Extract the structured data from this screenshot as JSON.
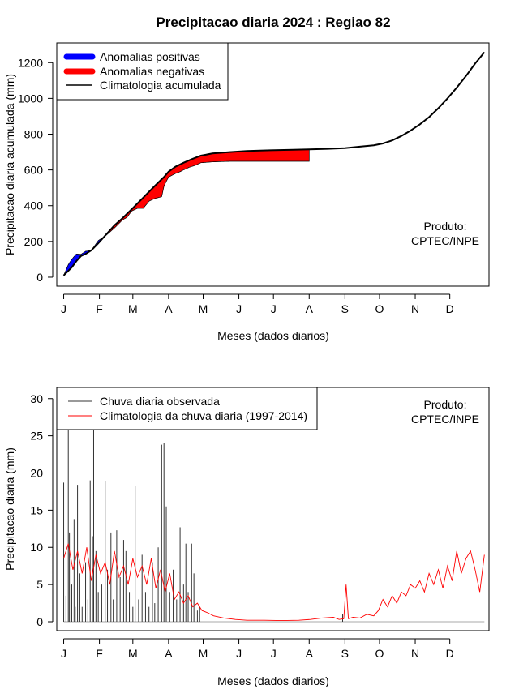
{
  "title": "Precipitacao diaria 2024 : Regiao 82",
  "colors": {
    "positive": "#0000ff",
    "negative": "#ff0000",
    "clim": "#000000",
    "obs": "#333333",
    "clim_daily": "#ff0000"
  },
  "product_note": {
    "line1": "Produto:",
    "line2": "CPTEC/INPE"
  },
  "chart_data": [
    {
      "type": "area",
      "name": "cumulative",
      "xlabel": "Meses (dados diarios)",
      "ylabel": "Precipitacao diaria acumulada (mm)",
      "xlim": [
        -5,
        370
      ],
      "ylim": [
        -50,
        1310
      ],
      "yticks": [
        0,
        200,
        400,
        600,
        800,
        1000,
        1200
      ],
      "month_ticks": [
        {
          "day": 1,
          "label": "J"
        },
        {
          "day": 32,
          "label": "F"
        },
        {
          "day": 61,
          "label": "M"
        },
        {
          "day": 92,
          "label": "A"
        },
        {
          "day": 122,
          "label": "M"
        },
        {
          "day": 153,
          "label": "J"
        },
        {
          "day": 183,
          "label": "J"
        },
        {
          "day": 214,
          "label": "A"
        },
        {
          "day": 245,
          "label": "S"
        },
        {
          "day": 275,
          "label": "O"
        },
        {
          "day": 306,
          "label": "N"
        },
        {
          "day": 336,
          "label": "D"
        }
      ],
      "legend": [
        {
          "label": "Anomalias positivas",
          "kind": "band",
          "color": "#0000ff"
        },
        {
          "label": "Anomalias negativas",
          "kind": "band",
          "color": "#ff0000"
        },
        {
          "label": "Climatologia acumulada",
          "kind": "line",
          "color": "#000000"
        }
      ],
      "climatology": {
        "x": [
          1,
          8,
          12,
          16,
          20,
          25,
          31,
          38,
          45,
          52,
          60,
          70,
          80,
          88,
          92,
          98,
          105,
          112,
          120,
          130,
          145,
          160,
          180,
          200,
          214,
          230,
          245,
          258,
          270,
          278,
          286,
          294,
          302,
          310,
          318,
          326,
          334,
          342,
          350,
          358,
          366
        ],
        "y": [
          10,
          55,
          90,
          118,
          130,
          150,
          190,
          240,
          290,
          330,
          380,
          445,
          510,
          560,
          590,
          618,
          640,
          660,
          680,
          692,
          700,
          706,
          710,
          713,
          715,
          718,
          722,
          730,
          738,
          748,
          765,
          790,
          820,
          855,
          895,
          945,
          1000,
          1060,
          1125,
          1195,
          1258
        ]
      },
      "observed": {
        "x": [
          1,
          5,
          8,
          12,
          16,
          20,
          25,
          31,
          38,
          45,
          52,
          56,
          60,
          65,
          70,
          75,
          80,
          83,
          86,
          88,
          92,
          98,
          102,
          105,
          110,
          115,
          120,
          130,
          145,
          160,
          180,
          200,
          214
        ],
        "y": [
          10,
          70,
          100,
          130,
          128,
          145,
          150,
          205,
          235,
          275,
          320,
          335,
          370,
          385,
          385,
          425,
          440,
          445,
          450,
          510,
          560,
          580,
          590,
          600,
          615,
          625,
          640,
          645,
          648,
          648,
          648,
          648,
          648
        ]
      }
    },
    {
      "type": "line",
      "name": "daily",
      "xlabel": "Meses (dados diarios)",
      "ylabel": "Precipitacao diaria (mm)",
      "xlim": [
        -5,
        370
      ],
      "ylim": [
        -1.2,
        31.5
      ],
      "yticks": [
        0,
        5,
        10,
        15,
        20,
        25,
        30
      ],
      "legend": [
        {
          "label": "Chuva diaria observada",
          "kind": "line",
          "color": "#333333"
        },
        {
          "label": "Climatologia da chuva diaria (1997-2014)",
          "kind": "line",
          "color": "#ff0000"
        }
      ],
      "observed_daily": [
        {
          "day": 1,
          "value": 18.7
        },
        {
          "day": 3,
          "value": 3.5
        },
        {
          "day": 5,
          "value": 26.8
        },
        {
          "day": 6,
          "value": 12.0
        },
        {
          "day": 8,
          "value": 5.0
        },
        {
          "day": 10,
          "value": 13.8
        },
        {
          "day": 11,
          "value": 2.0
        },
        {
          "day": 13,
          "value": 18.4
        },
        {
          "day": 15,
          "value": 6.5
        },
        {
          "day": 17,
          "value": 2.0
        },
        {
          "day": 20,
          "value": 8.0
        },
        {
          "day": 22,
          "value": 3.0
        },
        {
          "day": 24,
          "value": 19.0
        },
        {
          "day": 26,
          "value": 11.5
        },
        {
          "day": 27,
          "value": 26.0
        },
        {
          "day": 29,
          "value": 9.5
        },
        {
          "day": 31,
          "value": 4.0
        },
        {
          "day": 34,
          "value": 5.0
        },
        {
          "day": 37,
          "value": 18.9
        },
        {
          "day": 39,
          "value": 7.0
        },
        {
          "day": 42,
          "value": 12.0
        },
        {
          "day": 44,
          "value": 3.0
        },
        {
          "day": 47,
          "value": 12.3
        },
        {
          "day": 50,
          "value": 6.0
        },
        {
          "day": 53,
          "value": 11.0
        },
        {
          "day": 55,
          "value": 9.5
        },
        {
          "day": 58,
          "value": 4.0
        },
        {
          "day": 61,
          "value": 2.0
        },
        {
          "day": 63,
          "value": 18.2
        },
        {
          "day": 66,
          "value": 3.0
        },
        {
          "day": 69,
          "value": 9.0
        },
        {
          "day": 72,
          "value": 4.0
        },
        {
          "day": 75,
          "value": 2.0
        },
        {
          "day": 78,
          "value": 8.0
        },
        {
          "day": 80,
          "value": 2.5
        },
        {
          "day": 83,
          "value": 10.0
        },
        {
          "day": 86,
          "value": 23.8
        },
        {
          "day": 88,
          "value": 24.0
        },
        {
          "day": 90,
          "value": 15.5
        },
        {
          "day": 93,
          "value": 4.0
        },
        {
          "day": 96,
          "value": 7.0
        },
        {
          "day": 99,
          "value": 3.0
        },
        {
          "day": 102,
          "value": 12.7
        },
        {
          "day": 105,
          "value": 5.0
        },
        {
          "day": 107,
          "value": 10.5
        },
        {
          "day": 109,
          "value": 4.0
        },
        {
          "day": 112,
          "value": 10.5
        },
        {
          "day": 114,
          "value": 6.5
        },
        {
          "day": 117,
          "value": 1.5
        },
        {
          "day": 119,
          "value": 2.0
        },
        {
          "day": 243,
          "value": 1.0
        }
      ],
      "climatology_daily": {
        "x": [
          1,
          5,
          9,
          13,
          17,
          21,
          25,
          29,
          33,
          37,
          41,
          45,
          49,
          53,
          57,
          61,
          65,
          69,
          73,
          77,
          81,
          85,
          89,
          93,
          97,
          101,
          105,
          109,
          113,
          117,
          121,
          126,
          131,
          140,
          150,
          160,
          175,
          190,
          205,
          215,
          225,
          235,
          240,
          244,
          246,
          248,
          252,
          258,
          264,
          270,
          274,
          278,
          282,
          286,
          290,
          294,
          298,
          302,
          306,
          310,
          314,
          318,
          322,
          326,
          330,
          334,
          338,
          342,
          346,
          350,
          354,
          358,
          362,
          366
        ],
        "y": [
          8.5,
          10.5,
          7.0,
          9.5,
          6.5,
          10.0,
          5.5,
          9.0,
          6.5,
          8.0,
          5.0,
          9.5,
          6.0,
          7.5,
          5.0,
          8.5,
          6.0,
          7.5,
          5.0,
          8.5,
          4.5,
          7.0,
          4.0,
          6.5,
          3.0,
          4.0,
          2.5,
          3.5,
          2.0,
          2.5,
          1.5,
          1.2,
          0.8,
          0.5,
          0.3,
          0.2,
          0.2,
          0.15,
          0.2,
          0.3,
          0.5,
          0.6,
          0.3,
          0.4,
          5.0,
          0.4,
          0.6,
          0.5,
          1.0,
          0.8,
          1.5,
          3.0,
          2.0,
          3.5,
          2.5,
          4.0,
          3.5,
          5.0,
          4.5,
          5.5,
          4.0,
          6.5,
          5.0,
          7.0,
          4.5,
          7.5,
          5.5,
          9.5,
          6.5,
          8.5,
          9.5,
          7.0,
          4.0,
          9.0
        ]
      }
    }
  ]
}
